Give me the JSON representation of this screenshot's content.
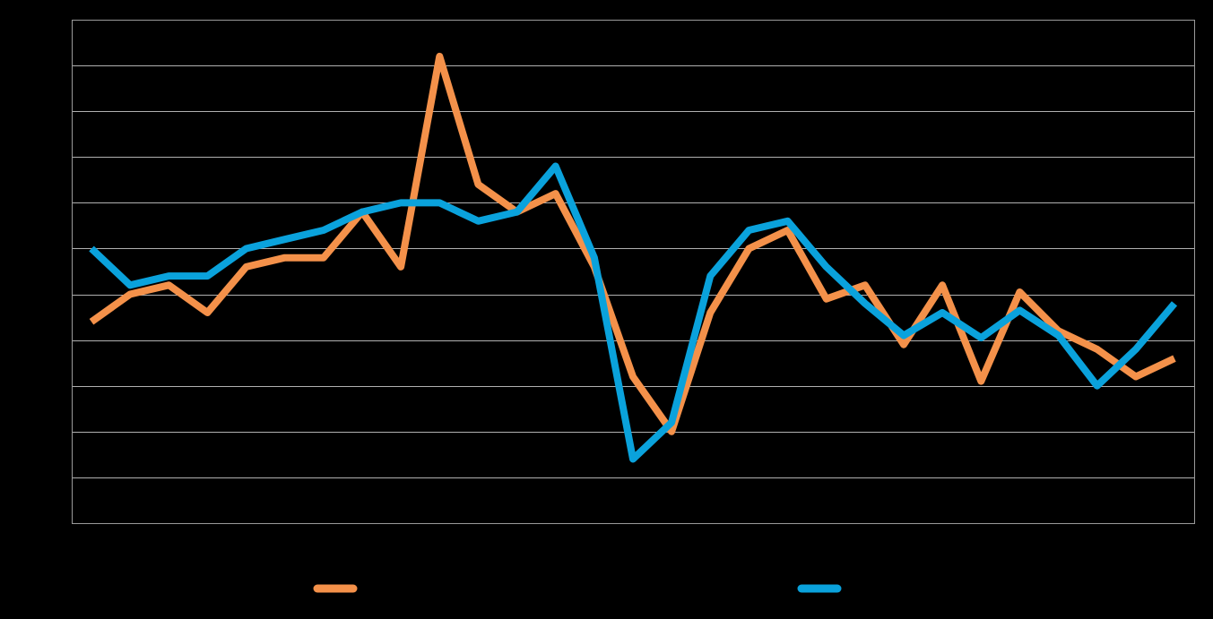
{
  "colors": {
    "background": "#000000",
    "plot_border": "#9a9a9a",
    "gridline": "#b0b0b0"
  },
  "chart_data": {
    "type": "line",
    "title": "",
    "xlabel": "",
    "ylabel": "",
    "ylim": [
      0,
      11
    ],
    "grid": true,
    "legend_position": "bottom",
    "x": [
      1,
      2,
      3,
      4,
      5,
      6,
      7,
      8,
      9,
      10,
      11,
      12,
      13,
      14,
      15,
      16,
      17,
      18,
      19,
      20,
      21,
      22,
      23,
      24,
      25,
      26,
      27,
      28,
      29
    ],
    "series": [
      {
        "color": "#f4914a",
        "values": [
          4.4,
          5.0,
          5.2,
          4.6,
          5.6,
          5.8,
          5.8,
          6.8,
          5.6,
          10.2,
          7.4,
          6.8,
          7.2,
          5.6,
          3.2,
          2.0,
          4.6,
          6.0,
          6.4,
          4.9,
          5.2,
          3.9,
          5.2,
          3.1,
          5.05,
          4.2,
          3.8,
          3.2,
          3.6
        ]
      },
      {
        "color": "#0aa2dc",
        "values": [
          6.0,
          5.2,
          5.4,
          5.4,
          6.0,
          6.2,
          6.4,
          6.8,
          7.0,
          7.0,
          6.6,
          6.8,
          7.8,
          5.8,
          1.4,
          2.2,
          5.4,
          6.4,
          6.6,
          5.6,
          4.8,
          4.1,
          4.6,
          4.05,
          4.65,
          4.1,
          3.0,
          3.8,
          4.8
        ]
      }
    ]
  }
}
